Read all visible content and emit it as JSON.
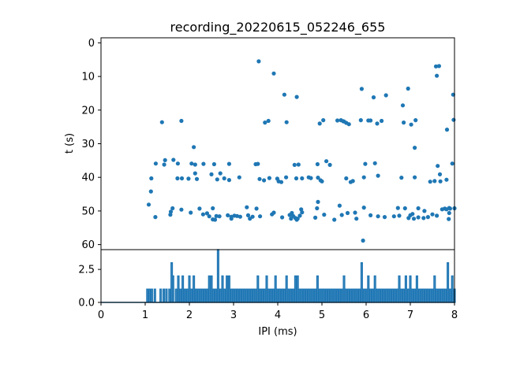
{
  "chart_data": [
    {
      "type": "scatter",
      "title": "recording_20220615_052246_655",
      "xlabel": "",
      "ylabel": "t (s)",
      "xlim": [
        0,
        8
      ],
      "ylim": [
        61.5,
        -1.5
      ],
      "y_inverted": true,
      "yticks": [
        0,
        10,
        20,
        30,
        40,
        50,
        60
      ],
      "grid": false,
      "color": "#1f77b4",
      "points": [
        [
          1.08,
          48.1
        ],
        [
          1.13,
          44.2
        ],
        [
          1.14,
          40.3
        ],
        [
          1.23,
          51.8
        ],
        [
          1.24,
          35.9
        ],
        [
          1.38,
          23.6
        ],
        [
          1.43,
          36.2
        ],
        [
          1.45,
          34.9
        ],
        [
          1.57,
          51.1
        ],
        [
          1.58,
          50.2
        ],
        [
          1.62,
          49.2
        ],
        [
          1.64,
          34.8
        ],
        [
          1.73,
          40.3
        ],
        [
          1.74,
          35.9
        ],
        [
          1.82,
          23.2
        ],
        [
          1.82,
          49.6
        ],
        [
          1.83,
          40.3
        ],
        [
          1.98,
          40.4
        ],
        [
          2.03,
          50.5
        ],
        [
          2.05,
          35.9
        ],
        [
          2.1,
          31.0
        ],
        [
          2.13,
          38.8
        ],
        [
          2.13,
          36.2
        ],
        [
          2.17,
          40.5
        ],
        [
          2.23,
          49.3
        ],
        [
          2.31,
          51.0
        ],
        [
          2.32,
          36.0
        ],
        [
          2.4,
          50.7
        ],
        [
          2.45,
          51.6
        ],
        [
          2.5,
          39.1
        ],
        [
          2.53,
          52.5
        ],
        [
          2.53,
          49.2
        ],
        [
          2.56,
          36.1
        ],
        [
          2.58,
          52.6
        ],
        [
          2.61,
          51.5
        ],
        [
          2.63,
          40.6
        ],
        [
          2.68,
          51.6
        ],
        [
          2.7,
          38.8
        ],
        [
          2.79,
          40.3
        ],
        [
          2.87,
          51.3
        ],
        [
          2.9,
          40.8
        ],
        [
          2.9,
          36.0
        ],
        [
          2.95,
          51.7
        ],
        [
          2.95,
          52.3
        ],
        [
          3.02,
          51.4
        ],
        [
          3.08,
          51.5
        ],
        [
          3.13,
          40.0
        ],
        [
          3.15,
          51.7
        ],
        [
          3.3,
          48.9
        ],
        [
          3.33,
          51.3
        ],
        [
          3.37,
          52.3
        ],
        [
          3.43,
          51.7
        ],
        [
          3.5,
          36.1
        ],
        [
          3.52,
          49.3
        ],
        [
          3.55,
          36.0
        ],
        [
          3.57,
          5.5
        ],
        [
          3.59,
          40.5
        ],
        [
          3.6,
          51.6
        ],
        [
          3.69,
          40.9
        ],
        [
          3.71,
          23.7
        ],
        [
          3.79,
          23.2
        ],
        [
          3.81,
          40.2
        ],
        [
          3.87,
          51.0
        ],
        [
          3.91,
          9.1
        ],
        [
          3.91,
          50.5
        ],
        [
          3.99,
          40.4
        ],
        [
          4.02,
          41.2
        ],
        [
          4.08,
          41.4
        ],
        [
          4.1,
          51.9
        ],
        [
          4.15,
          15.4
        ],
        [
          4.19,
          40.0
        ],
        [
          4.2,
          23.6
        ],
        [
          4.27,
          51.2
        ],
        [
          4.3,
          52.3
        ],
        [
          4.32,
          50.6
        ],
        [
          4.35,
          51.5
        ],
        [
          4.38,
          36.3
        ],
        [
          4.4,
          52.1
        ],
        [
          4.42,
          40.3
        ],
        [
          4.43,
          52.6
        ],
        [
          4.43,
          16.1
        ],
        [
          4.45,
          52.3
        ],
        [
          4.47,
          36.2
        ],
        [
          4.5,
          51.4
        ],
        [
          4.53,
          49.5
        ],
        [
          4.55,
          40.3
        ],
        [
          4.55,
          50.4
        ],
        [
          4.7,
          40.0
        ],
        [
          4.75,
          40.2
        ],
        [
          4.85,
          52.0
        ],
        [
          4.89,
          49.2
        ],
        [
          4.91,
          40.1
        ],
        [
          4.9,
          36.1
        ],
        [
          4.91,
          47.3
        ],
        [
          4.95,
          24.0
        ],
        [
          4.97,
          40.9
        ],
        [
          5.0,
          41.2
        ],
        [
          5.03,
          23.0
        ],
        [
          5.05,
          51.1
        ],
        [
          5.1,
          35.2
        ],
        [
          5.18,
          36.3
        ],
        [
          5.28,
          52.6
        ],
        [
          5.35,
          23.1
        ],
        [
          5.4,
          48.4
        ],
        [
          5.43,
          23.0
        ],
        [
          5.45,
          51.2
        ],
        [
          5.48,
          23.3
        ],
        [
          5.5,
          23.4
        ],
        [
          5.55,
          40.3
        ],
        [
          5.55,
          23.8
        ],
        [
          5.58,
          50.6
        ],
        [
          5.61,
          24.2
        ],
        [
          5.65,
          41.4
        ],
        [
          5.7,
          41.1
        ],
        [
          5.75,
          50.5
        ],
        [
          5.78,
          52.3
        ],
        [
          5.88,
          23.0
        ],
        [
          5.9,
          13.7
        ],
        [
          5.93,
          58.8
        ],
        [
          5.95,
          49.0
        ],
        [
          5.95,
          40.0
        ],
        [
          5.98,
          36.0
        ],
        [
          6.05,
          23.1
        ],
        [
          6.1,
          23.1
        ],
        [
          6.1,
          51.3
        ],
        [
          6.17,
          16.2
        ],
        [
          6.2,
          35.8
        ],
        [
          6.25,
          24.0
        ],
        [
          6.27,
          39.5
        ],
        [
          6.27,
          51.6
        ],
        [
          6.35,
          23.2
        ],
        [
          6.42,
          51.8
        ],
        [
          6.45,
          15.6
        ],
        [
          6.63,
          51.6
        ],
        [
          6.72,
          49.1
        ],
        [
          6.75,
          51.4
        ],
        [
          6.8,
          40.1
        ],
        [
          6.83,
          18.6
        ],
        [
          6.85,
          23.7
        ],
        [
          6.88,
          49.2
        ],
        [
          6.95,
          13.6
        ],
        [
          6.96,
          52.1
        ],
        [
          7.0,
          51.3
        ],
        [
          7.02,
          24.3
        ],
        [
          7.05,
          50.9
        ],
        [
          7.1,
          31.2
        ],
        [
          7.08,
          52.3
        ],
        [
          7.1,
          40.0
        ],
        [
          7.12,
          23.0
        ],
        [
          7.18,
          51.9
        ],
        [
          7.18,
          49.2
        ],
        [
          7.3,
          52.1
        ],
        [
          7.32,
          50.0
        ],
        [
          7.4,
          51.8
        ],
        [
          7.45,
          41.3
        ],
        [
          7.5,
          51.0
        ],
        [
          7.55,
          41.1
        ],
        [
          7.58,
          7.0
        ],
        [
          7.6,
          9.8
        ],
        [
          7.6,
          51.4
        ],
        [
          7.62,
          36.6
        ],
        [
          7.65,
          6.9
        ],
        [
          7.67,
          39.1
        ],
        [
          7.68,
          41.2
        ],
        [
          7.72,
          49.5
        ],
        [
          7.78,
          49.3
        ],
        [
          7.82,
          40.7
        ],
        [
          7.82,
          49.5
        ],
        [
          7.83,
          25.8
        ],
        [
          7.87,
          52.4
        ],
        [
          7.88,
          49.1
        ],
        [
          7.9,
          49.3
        ],
        [
          7.95,
          35.9
        ],
        [
          7.97,
          15.4
        ],
        [
          7.98,
          22.9
        ],
        [
          8.0,
          49.2
        ],
        [
          7.88,
          50.6
        ]
      ]
    },
    {
      "type": "line",
      "title": "",
      "xlabel": "IPI (ms)",
      "ylabel": "",
      "xlim": [
        0,
        8
      ],
      "ylim": [
        0,
        4.0
      ],
      "xticks": [
        0,
        1,
        2,
        3,
        4,
        5,
        6,
        7,
        8
      ],
      "yticks": [
        0.0,
        2.5
      ],
      "ytick_labels": [
        "0.0",
        "2.5"
      ],
      "grid": false,
      "color": "#1f77b4",
      "peaks": [
        [
          1.05,
          1
        ],
        [
          1.1,
          1
        ],
        [
          1.15,
          1
        ],
        [
          1.22,
          1
        ],
        [
          1.35,
          1
        ],
        [
          1.42,
          1
        ],
        [
          1.48,
          1
        ],
        [
          1.55,
          1
        ],
        [
          1.6,
          3
        ],
        [
          1.63,
          2
        ],
        [
          1.7,
          1
        ],
        [
          1.75,
          2
        ],
        [
          1.8,
          1
        ],
        [
          1.85,
          2
        ],
        [
          1.9,
          1
        ],
        [
          1.95,
          1
        ],
        [
          2.0,
          2
        ],
        [
          2.05,
          1
        ],
        [
          2.1,
          2
        ],
        [
          2.15,
          1
        ],
        [
          2.2,
          1
        ],
        [
          2.25,
          1
        ],
        [
          2.3,
          1
        ],
        [
          2.35,
          1
        ],
        [
          2.4,
          1
        ],
        [
          2.45,
          2
        ],
        [
          2.5,
          2
        ],
        [
          2.55,
          1
        ],
        [
          2.6,
          1
        ],
        [
          2.65,
          4
        ],
        [
          2.7,
          1
        ],
        [
          2.75,
          2
        ],
        [
          2.8,
          1
        ],
        [
          2.85,
          2
        ],
        [
          2.9,
          2
        ],
        [
          2.95,
          1
        ],
        [
          3.0,
          1
        ],
        [
          3.05,
          1
        ],
        [
          3.1,
          1
        ],
        [
          3.15,
          1
        ],
        [
          3.2,
          1
        ],
        [
          3.25,
          1
        ],
        [
          3.3,
          1
        ],
        [
          3.35,
          1
        ],
        [
          3.4,
          1
        ],
        [
          3.45,
          1
        ],
        [
          3.5,
          1
        ],
        [
          3.55,
          2
        ],
        [
          3.6,
          1
        ],
        [
          3.65,
          1
        ],
        [
          3.7,
          1
        ],
        [
          3.75,
          2
        ],
        [
          3.8,
          1
        ],
        [
          3.85,
          1
        ],
        [
          3.9,
          1
        ],
        [
          3.95,
          2
        ],
        [
          4.0,
          1
        ],
        [
          4.05,
          1
        ],
        [
          4.1,
          1
        ],
        [
          4.15,
          1
        ],
        [
          4.2,
          2
        ],
        [
          4.25,
          1
        ],
        [
          4.3,
          1
        ],
        [
          4.35,
          1
        ],
        [
          4.4,
          2
        ],
        [
          4.45,
          2
        ],
        [
          4.5,
          1
        ],
        [
          4.55,
          1
        ],
        [
          4.6,
          1
        ],
        [
          4.65,
          1
        ],
        [
          4.7,
          1
        ],
        [
          4.75,
          1
        ],
        [
          4.8,
          1
        ],
        [
          4.85,
          1
        ],
        [
          4.9,
          2
        ],
        [
          4.95,
          1
        ],
        [
          5.0,
          1
        ],
        [
          5.05,
          1
        ],
        [
          5.1,
          1
        ],
        [
          5.15,
          1
        ],
        [
          5.2,
          1
        ],
        [
          5.25,
          1
        ],
        [
          5.3,
          1
        ],
        [
          5.35,
          1
        ],
        [
          5.4,
          1
        ],
        [
          5.45,
          1
        ],
        [
          5.5,
          2
        ],
        [
          5.55,
          1
        ],
        [
          5.6,
          1
        ],
        [
          5.65,
          1
        ],
        [
          5.7,
          1
        ],
        [
          5.75,
          1
        ],
        [
          5.8,
          1
        ],
        [
          5.85,
          1
        ],
        [
          5.9,
          3
        ],
        [
          5.95,
          1
        ],
        [
          6.0,
          1
        ],
        [
          6.05,
          2
        ],
        [
          6.1,
          1
        ],
        [
          6.15,
          1
        ],
        [
          6.2,
          2
        ],
        [
          6.25,
          1
        ],
        [
          6.3,
          1
        ],
        [
          6.35,
          1
        ],
        [
          6.4,
          1
        ],
        [
          6.45,
          1
        ],
        [
          6.5,
          1
        ],
        [
          6.55,
          1
        ],
        [
          6.6,
          1
        ],
        [
          6.65,
          1
        ],
        [
          6.7,
          1
        ],
        [
          6.75,
          2
        ],
        [
          6.8,
          1
        ],
        [
          6.85,
          1
        ],
        [
          6.9,
          2
        ],
        [
          6.95,
          1
        ],
        [
          7.0,
          2
        ],
        [
          7.05,
          1
        ],
        [
          7.1,
          1
        ],
        [
          7.15,
          2
        ],
        [
          7.2,
          1
        ],
        [
          7.25,
          1
        ],
        [
          7.3,
          1
        ],
        [
          7.35,
          1
        ],
        [
          7.4,
          1
        ],
        [
          7.45,
          1
        ],
        [
          7.5,
          1
        ],
        [
          7.55,
          2
        ],
        [
          7.6,
          1
        ],
        [
          7.65,
          1
        ],
        [
          7.7,
          1
        ],
        [
          7.75,
          1
        ],
        [
          7.8,
          1
        ],
        [
          7.85,
          3
        ],
        [
          7.9,
          1
        ],
        [
          7.95,
          2
        ],
        [
          8.0,
          1
        ]
      ]
    }
  ]
}
